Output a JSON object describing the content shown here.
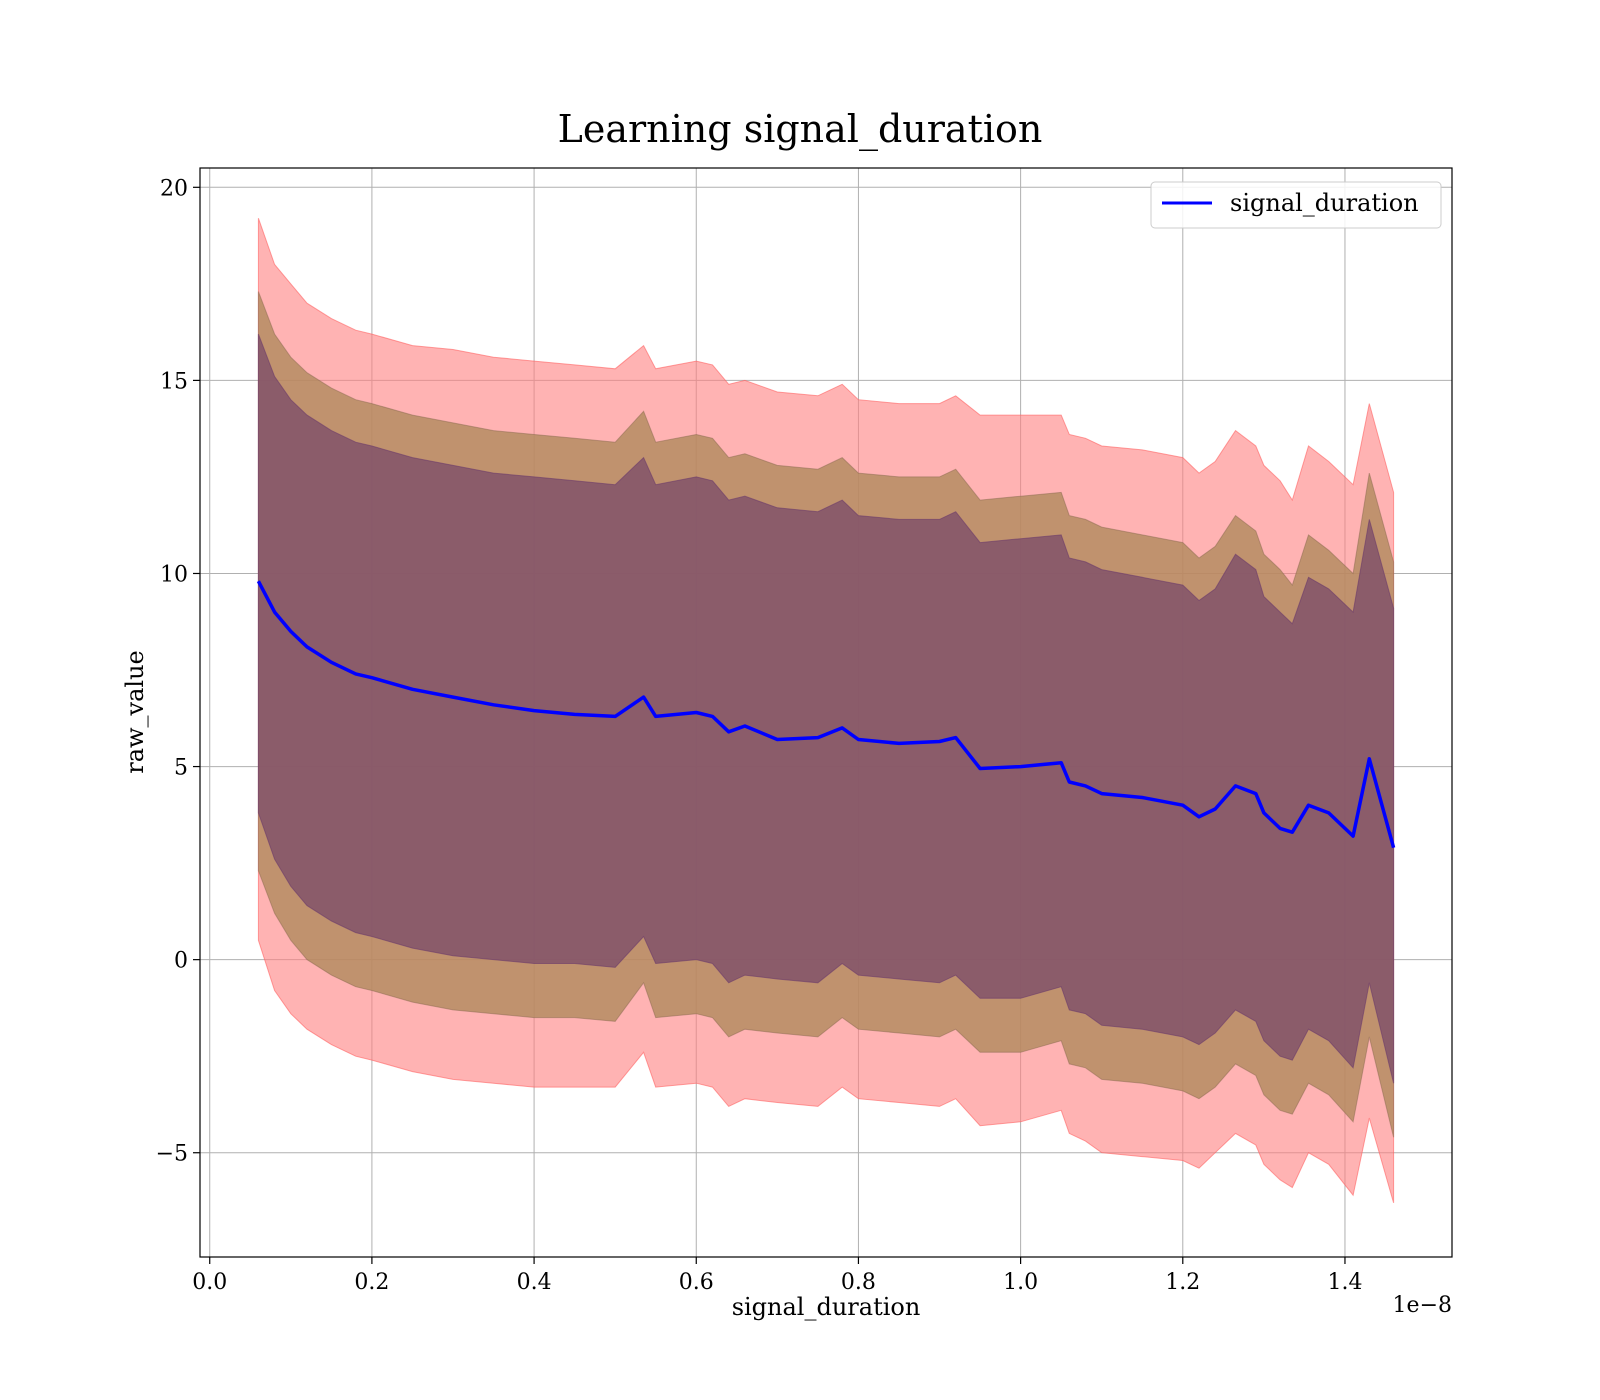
{
  "chart_data": {
    "type": "line",
    "title": "Learning signal_duration",
    "xlabel": "signal_duration",
    "ylabel": "raw_value",
    "x_offset_text": "1e−8",
    "xlim": [
      -0.012,
      1.532
    ],
    "ylim": [
      -7.7,
      20.5
    ],
    "xticks": [
      0.0,
      0.2,
      0.4,
      0.6,
      0.8,
      1.0,
      1.2,
      1.4
    ],
    "xtick_labels": [
      "0.0",
      "0.2",
      "0.4",
      "0.6",
      "0.8",
      "1.0",
      "1.2",
      "1.4"
    ],
    "yticks": [
      -5,
      0,
      5,
      10,
      15,
      20
    ],
    "ytick_labels": [
      "−5",
      "0",
      "5",
      "10",
      "15",
      "20"
    ],
    "grid": true,
    "legend_position": "top-right",
    "colors": {
      "line": "#0000ff",
      "band_outer": "#ff8080",
      "band_middle": "#b08a5c",
      "band_inner": "#7a4a6a"
    },
    "series": [
      {
        "name": "signal_duration",
        "x": [
          0.06,
          0.08,
          0.1,
          0.12,
          0.15,
          0.18,
          0.2,
          0.25,
          0.3,
          0.35,
          0.4,
          0.45,
          0.5,
          0.535,
          0.55,
          0.6,
          0.62,
          0.64,
          0.66,
          0.7,
          0.75,
          0.78,
          0.8,
          0.85,
          0.9,
          0.92,
          0.95,
          1.0,
          1.05,
          1.06,
          1.08,
          1.1,
          1.15,
          1.2,
          1.22,
          1.24,
          1.265,
          1.29,
          1.3,
          1.32,
          1.335,
          1.355,
          1.38,
          1.41,
          1.43,
          1.46
        ],
        "values": [
          9.8,
          9.0,
          8.5,
          8.1,
          7.7,
          7.4,
          7.3,
          7.0,
          6.8,
          6.6,
          6.45,
          6.35,
          6.3,
          6.8,
          6.3,
          6.4,
          6.3,
          5.9,
          6.05,
          5.7,
          5.75,
          6.0,
          5.7,
          5.6,
          5.65,
          5.75,
          4.95,
          5.0,
          5.1,
          4.6,
          4.5,
          4.3,
          4.2,
          4.0,
          3.7,
          3.9,
          4.5,
          4.3,
          3.8,
          3.4,
          3.3,
          4.0,
          3.8,
          3.2,
          5.2,
          2.9
        ],
        "band_outer_upper": [
          19.2,
          18.0,
          17.5,
          17.0,
          16.6,
          16.3,
          16.2,
          15.9,
          15.8,
          15.6,
          15.5,
          15.4,
          15.3,
          15.9,
          15.3,
          15.5,
          15.4,
          14.9,
          15.0,
          14.7,
          14.6,
          14.9,
          14.5,
          14.4,
          14.4,
          14.6,
          14.1,
          14.1,
          14.1,
          13.6,
          13.5,
          13.3,
          13.2,
          13.0,
          12.6,
          12.9,
          13.7,
          13.3,
          12.8,
          12.4,
          11.9,
          13.3,
          12.9,
          12.3,
          14.4,
          12.1
        ],
        "band_outer_lower": [
          0.5,
          -0.8,
          -1.4,
          -1.8,
          -2.2,
          -2.5,
          -2.6,
          -2.9,
          -3.1,
          -3.2,
          -3.3,
          -3.3,
          -3.3,
          -2.4,
          -3.3,
          -3.2,
          -3.3,
          -3.8,
          -3.6,
          -3.7,
          -3.8,
          -3.3,
          -3.6,
          -3.7,
          -3.8,
          -3.6,
          -4.3,
          -4.2,
          -3.9,
          -4.5,
          -4.7,
          -5.0,
          -5.1,
          -5.2,
          -5.4,
          -5.0,
          -4.5,
          -4.8,
          -5.3,
          -5.7,
          -5.9,
          -5.0,
          -5.3,
          -6.1,
          -4.1,
          -6.3
        ],
        "band_middle_upper": [
          17.3,
          16.2,
          15.6,
          15.2,
          14.8,
          14.5,
          14.4,
          14.1,
          13.9,
          13.7,
          13.6,
          13.5,
          13.4,
          14.2,
          13.4,
          13.6,
          13.5,
          13.0,
          13.1,
          12.8,
          12.7,
          13.0,
          12.6,
          12.5,
          12.5,
          12.7,
          11.9,
          12.0,
          12.1,
          11.5,
          11.4,
          11.2,
          11.0,
          10.8,
          10.4,
          10.7,
          11.5,
          11.1,
          10.5,
          10.1,
          9.7,
          11.0,
          10.6,
          10.0,
          12.6,
          10.3
        ],
        "band_middle_lower": [
          2.3,
          1.2,
          0.5,
          0.0,
          -0.4,
          -0.7,
          -0.8,
          -1.1,
          -1.3,
          -1.4,
          -1.5,
          -1.5,
          -1.6,
          -0.6,
          -1.5,
          -1.4,
          -1.5,
          -2.0,
          -1.8,
          -1.9,
          -2.0,
          -1.5,
          -1.8,
          -1.9,
          -2.0,
          -1.8,
          -2.4,
          -2.4,
          -2.1,
          -2.7,
          -2.8,
          -3.1,
          -3.2,
          -3.4,
          -3.6,
          -3.3,
          -2.7,
          -3.0,
          -3.5,
          -3.9,
          -4.0,
          -3.2,
          -3.5,
          -4.2,
          -2.0,
          -4.6
        ],
        "band_inner_upper": [
          16.2,
          15.1,
          14.5,
          14.1,
          13.7,
          13.4,
          13.3,
          13.0,
          12.8,
          12.6,
          12.5,
          12.4,
          12.3,
          13.0,
          12.3,
          12.5,
          12.4,
          11.9,
          12.0,
          11.7,
          11.6,
          11.9,
          11.5,
          11.4,
          11.4,
          11.6,
          10.8,
          10.9,
          11.0,
          10.4,
          10.3,
          10.1,
          9.9,
          9.7,
          9.3,
          9.6,
          10.5,
          10.1,
          9.4,
          9.0,
          8.7,
          9.9,
          9.6,
          9.0,
          11.4,
          9.1
        ],
        "band_inner_lower": [
          3.8,
          2.6,
          1.9,
          1.4,
          1.0,
          0.7,
          0.6,
          0.3,
          0.1,
          0.0,
          -0.1,
          -0.1,
          -0.2,
          0.6,
          -0.1,
          0.0,
          -0.1,
          -0.6,
          -0.4,
          -0.5,
          -0.6,
          -0.1,
          -0.4,
          -0.5,
          -0.6,
          -0.4,
          -1.0,
          -1.0,
          -0.7,
          -1.3,
          -1.4,
          -1.7,
          -1.8,
          -2.0,
          -2.2,
          -1.9,
          -1.3,
          -1.6,
          -2.1,
          -2.5,
          -2.6,
          -1.8,
          -2.1,
          -2.8,
          -0.6,
          -3.2
        ]
      }
    ]
  }
}
